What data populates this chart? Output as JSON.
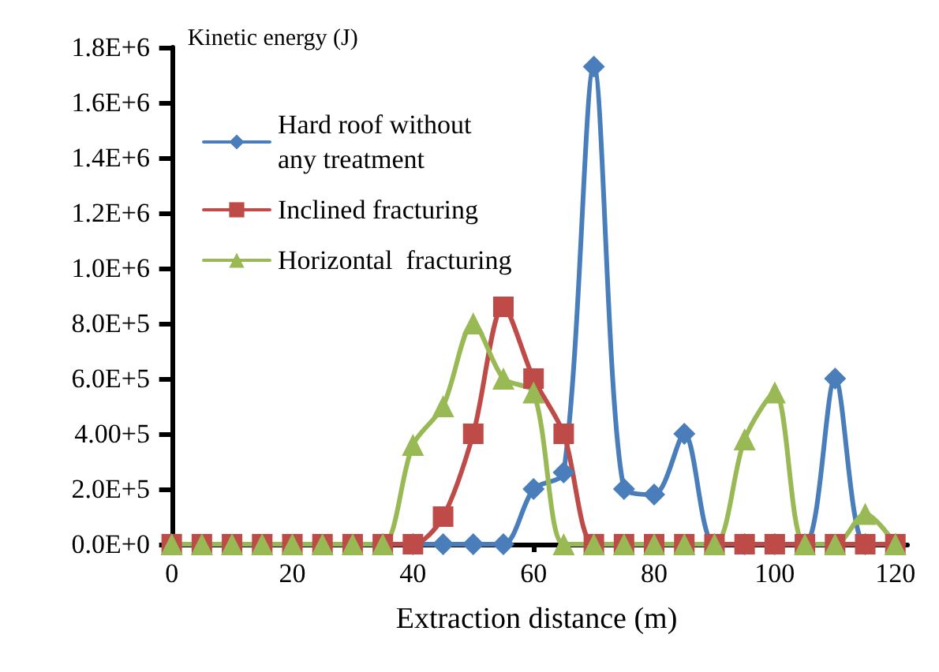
{
  "chart_data": {
    "type": "line",
    "ylabel": "Kinetic energy (J)",
    "xlabel": "Extraction distance (m)",
    "x": [
      0,
      5,
      10,
      15,
      20,
      25,
      30,
      35,
      40,
      45,
      50,
      55,
      60,
      65,
      70,
      75,
      80,
      85,
      90,
      95,
      100,
      105,
      110,
      115,
      120
    ],
    "series": [
      {
        "name": "Hard roof without\nany treatment",
        "color": "#4a7ebb",
        "marker": "diamond",
        "values": [
          null,
          null,
          null,
          null,
          null,
          null,
          null,
          0,
          0,
          0,
          0,
          0,
          200000,
          260000,
          1730000,
          200000,
          180000,
          400000,
          0,
          0,
          0,
          0,
          600000,
          0,
          0
        ]
      },
      {
        "name": "Inclined fracturing",
        "color": "#be4b48",
        "marker": "square",
        "values": [
          0,
          0,
          0,
          0,
          0,
          0,
          0,
          0,
          0,
          100000,
          400000,
          860000,
          600000,
          400000,
          0,
          0,
          0,
          0,
          0,
          0,
          0,
          0,
          0,
          0,
          0
        ]
      },
      {
        "name": "Horizontal  fracturing",
        "color": "#98b954",
        "marker": "triangle",
        "values": [
          0,
          0,
          0,
          0,
          0,
          0,
          0,
          0,
          360000,
          500000,
          800000,
          600000,
          550000,
          0,
          0,
          0,
          0,
          0,
          0,
          380000,
          550000,
          0,
          0,
          110000,
          0
        ]
      }
    ],
    "xlim": [
      -1,
      122
    ],
    "xticks": [
      0,
      20,
      40,
      60,
      80,
      100,
      120
    ],
    "ylim": [
      0,
      1800000
    ],
    "yticks": [
      {
        "value": 0,
        "label": "0.0E+0"
      },
      {
        "value": 200000,
        "label": "2.0E+5"
      },
      {
        "value": 400000,
        "label": "4.00+5"
      },
      {
        "value": 600000,
        "label": "6.0E+5"
      },
      {
        "value": 800000,
        "label": "8.0E+5"
      },
      {
        "value": 1000000,
        "label": "1.0E+6"
      },
      {
        "value": 1200000,
        "label": "1.2E+6"
      },
      {
        "value": 1400000,
        "label": "1.4E+6"
      },
      {
        "value": 1600000,
        "label": "1.6E+6"
      },
      {
        "value": 1800000,
        "label": "1.8E+6"
      }
    ],
    "grid": false,
    "legend": "top left",
    "line_style": "solid"
  }
}
